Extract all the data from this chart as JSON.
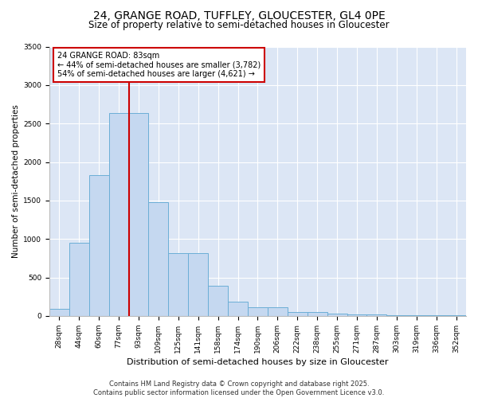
{
  "title1": "24, GRANGE ROAD, TUFFLEY, GLOUCESTER, GL4 0PE",
  "title2": "Size of property relative to semi-detached houses in Gloucester",
  "xlabel": "Distribution of semi-detached houses by size in Gloucester",
  "ylabel": "Number of semi-detached properties",
  "categories": [
    "28sqm",
    "44sqm",
    "60sqm",
    "77sqm",
    "93sqm",
    "109sqm",
    "125sqm",
    "141sqm",
    "158sqm",
    "174sqm",
    "190sqm",
    "206sqm",
    "222sqm",
    "238sqm",
    "255sqm",
    "271sqm",
    "287sqm",
    "303sqm",
    "319sqm",
    "336sqm",
    "352sqm"
  ],
  "values": [
    95,
    950,
    1830,
    2640,
    2640,
    1480,
    820,
    820,
    390,
    185,
    115,
    115,
    55,
    55,
    35,
    20,
    20,
    10,
    10,
    10,
    5
  ],
  "bar_color": "#c5d8f0",
  "bar_edge_color": "#6baed6",
  "vline_color": "#cc0000",
  "annotation_text": "24 GRANGE ROAD: 83sqm\n← 44% of semi-detached houses are smaller (3,782)\n54% of semi-detached houses are larger (4,621) →",
  "annotation_box_facecolor": "white",
  "annotation_box_edgecolor": "#cc0000",
  "footnote": "Contains HM Land Registry data © Crown copyright and database right 2025.\nContains public sector information licensed under the Open Government Licence v3.0.",
  "plot_bg_color": "#dce6f5",
  "fig_bg_color": "#ffffff",
  "ylim": [
    0,
    3500
  ],
  "yticks": [
    0,
    500,
    1000,
    1500,
    2000,
    2500,
    3000,
    3500
  ],
  "title1_fontsize": 10,
  "title2_fontsize": 8.5,
  "ylabel_fontsize": 7.5,
  "xlabel_fontsize": 8,
  "tick_fontsize": 6.5,
  "annotation_fontsize": 7,
  "footnote_fontsize": 6
}
